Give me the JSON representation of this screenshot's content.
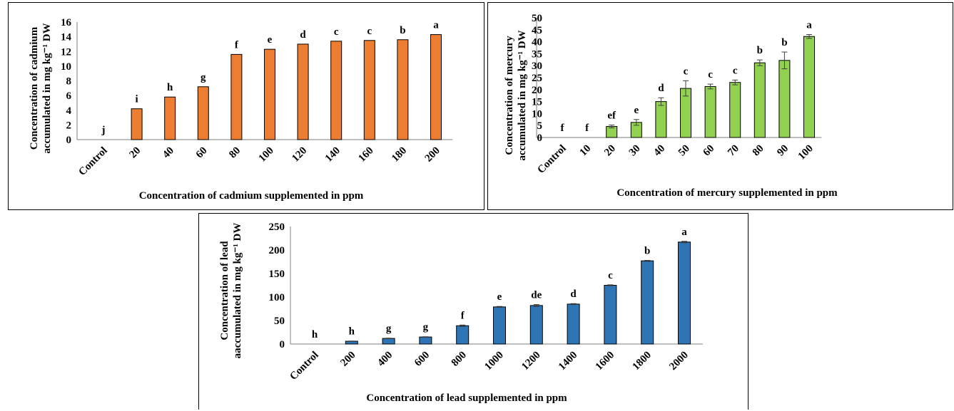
{
  "chart_data": [
    {
      "type": "bar",
      "categories": [
        "Control",
        "20",
        "40",
        "60",
        "80",
        "100",
        "120",
        "140",
        "160",
        "180",
        "200"
      ],
      "values": [
        0,
        4.2,
        5.8,
        7.2,
        11.6,
        12.3,
        13.0,
        13.4,
        13.5,
        13.6,
        14.3
      ],
      "errors": [
        0,
        0,
        0,
        0,
        0,
        0,
        0,
        0,
        0,
        0,
        0
      ],
      "significance": [
        "j",
        "i",
        "h",
        "g",
        "f",
        "e",
        "d",
        "c",
        "c",
        "b",
        "a"
      ],
      "xlabel": "Concentration of cadmium supplemented in ppm",
      "ylabel_line1": "Concentration of cadmium",
      "ylabel_line2": "accumulated in mg kg⁻¹ DW",
      "ylim": [
        0,
        16
      ],
      "yticks": [
        0,
        2,
        4,
        6,
        8,
        10,
        12,
        14,
        16
      ],
      "color": "#ED7D31",
      "grid": false
    },
    {
      "type": "bar",
      "categories": [
        "Control",
        "10",
        "20",
        "30",
        "40",
        "50",
        "60",
        "70",
        "80",
        "90",
        "100"
      ],
      "values": [
        0,
        0,
        4.6,
        6.3,
        15.0,
        20.5,
        21.3,
        23.0,
        31.2,
        32.2,
        42.2
      ],
      "errors": [
        0,
        0,
        0.6,
        1.2,
        1.6,
        3.2,
        1.0,
        1.0,
        1.2,
        3.5,
        0.8
      ],
      "significance": [
        "f",
        "f",
        "ef",
        "e",
        "d",
        "c",
        "c",
        "c",
        "b",
        "b",
        "a"
      ],
      "xlabel": "Concentration of mercury supplemented in ppm",
      "ylabel_line1": "Concentration of mercury",
      "ylabel_line2": "accumulated in mg kg⁻¹ DW",
      "ylim": [
        0,
        50
      ],
      "yticks": [
        0,
        5,
        10,
        15,
        20,
        25,
        30,
        35,
        40,
        45,
        50
      ],
      "color": "#92D050",
      "grid": false
    },
    {
      "type": "bar",
      "categories": [
        "Control",
        "200",
        "400",
        "600",
        "800",
        "1000",
        "1200",
        "1400",
        "1600",
        "1800",
        "2000"
      ],
      "values": [
        0,
        6,
        12,
        15,
        39,
        79,
        82,
        85,
        125,
        177,
        217
      ],
      "errors": [
        0,
        0.5,
        0.6,
        0.6,
        1.5,
        1.0,
        2.0,
        1.0,
        1.0,
        1.0,
        1.5
      ],
      "significance": [
        "h",
        "h",
        "g",
        "g",
        "f",
        "e",
        "de",
        "d",
        "c",
        "b",
        "a"
      ],
      "xlabel": "Concentration of lead supplemented in ppm",
      "ylabel_line1": "Concentration of lead",
      "ylabel_line2": "aaccumulated in mg kg⁻¹ DW",
      "ylim": [
        0,
        250
      ],
      "yticks": [
        0,
        50,
        100,
        150,
        200,
        250
      ],
      "color": "#2E75B6",
      "grid": false
    }
  ]
}
